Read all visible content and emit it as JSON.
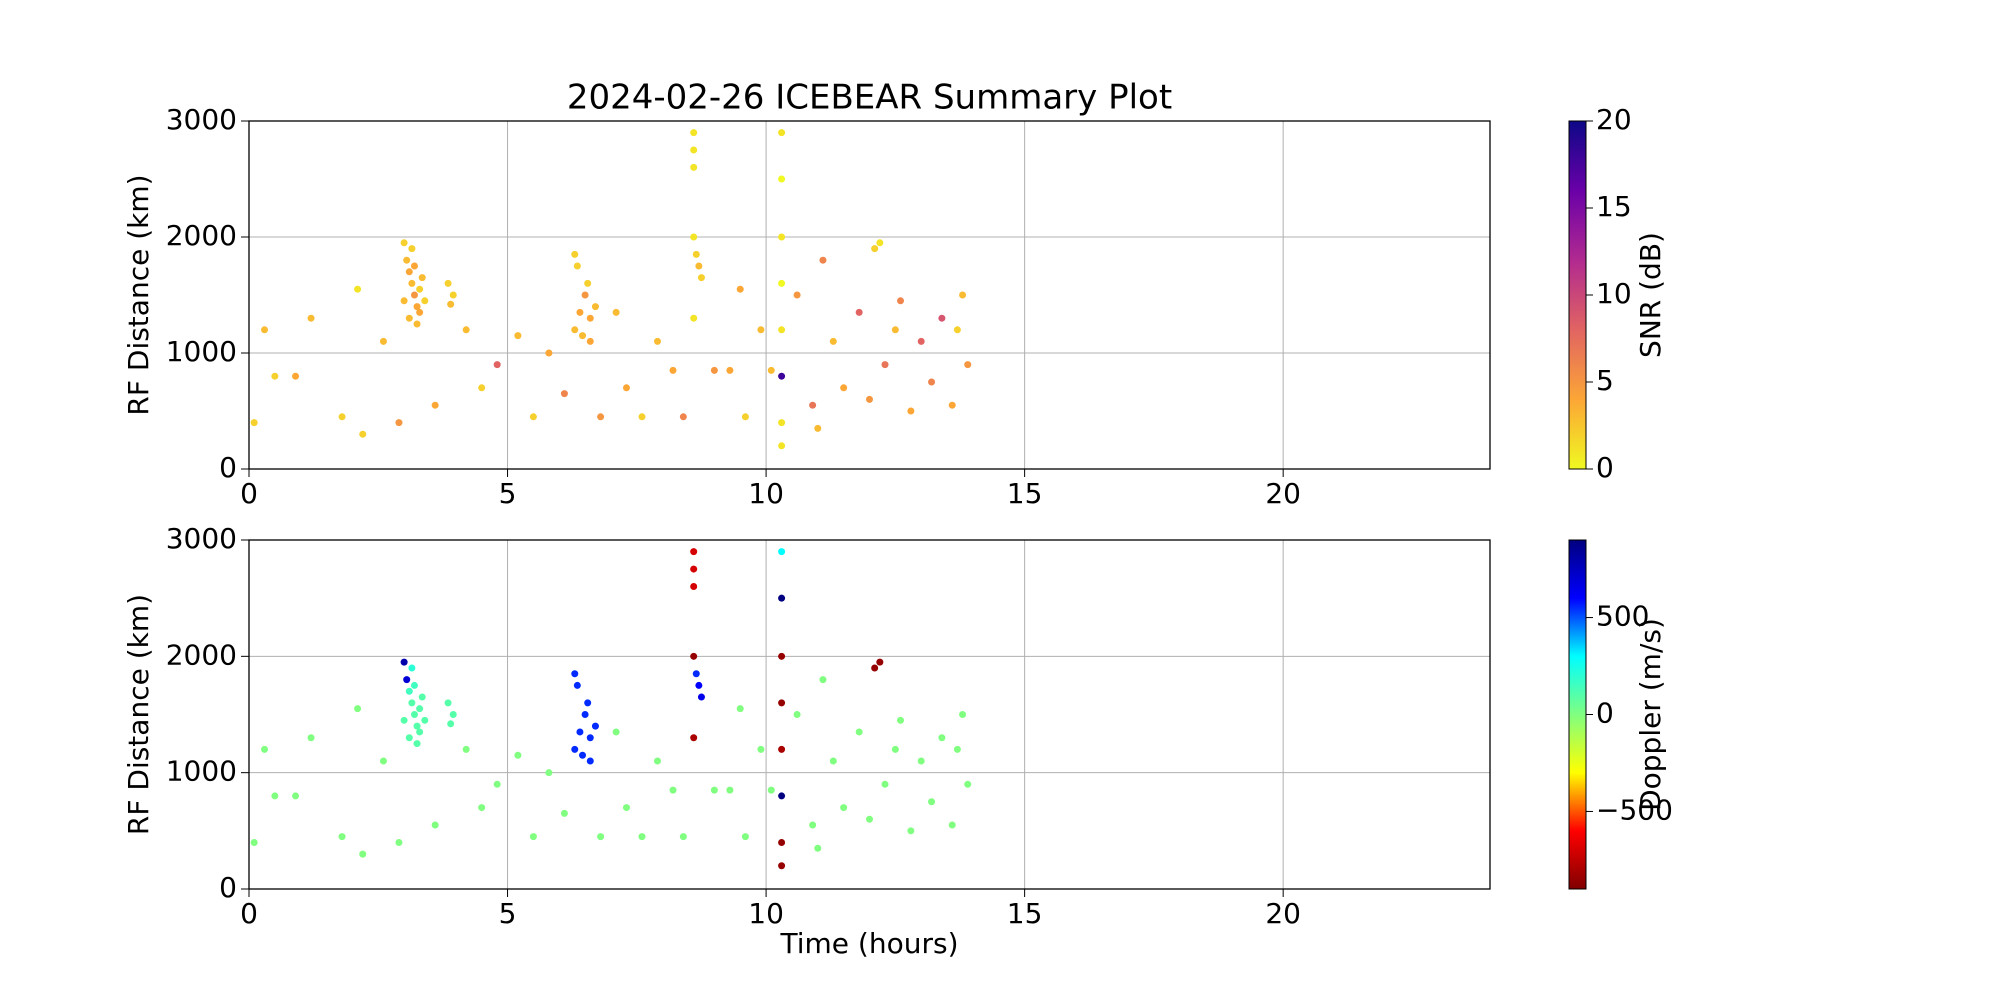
{
  "chart_data": [
    {
      "type": "scatter",
      "title": "2024-02-26 ICEBEAR Summary Plot",
      "ylabel": "RF Distance (km)",
      "xlim": [
        0,
        24
      ],
      "ylim": [
        0,
        3000
      ],
      "xticks": [
        0,
        5,
        10,
        15,
        20
      ],
      "yticks": [
        0,
        1000,
        2000,
        3000
      ],
      "grid": true,
      "colorbar": {
        "label": "SNR (dB)",
        "lim": [
          0,
          20
        ],
        "ticks": [
          0,
          5,
          10,
          15,
          20
        ],
        "colormap": [
          "#f0f921",
          "#fca636",
          "#e16462",
          "#b12a90",
          "#6a00a8",
          "#0d0887"
        ]
      },
      "x": [
        3.0,
        3.05,
        3.1,
        3.15,
        3.2,
        3.25,
        3.1,
        3.3,
        3.35,
        3.2,
        3.0,
        3.3,
        3.15,
        3.25,
        3.4,
        3.85,
        3.95,
        3.9,
        6.3,
        6.4,
        6.5,
        6.6,
        6.45,
        6.55,
        6.35,
        6.7,
        6.6,
        6.3,
        8.6,
        8.6,
        8.6,
        8.6,
        8.65,
        8.7,
        8.75,
        8.6,
        10.3,
        10.3,
        10.3,
        10.3,
        10.3,
        10.3,
        10.3,
        10.3,
        12.1,
        12.2,
        0.1,
        0.3,
        0.5,
        0.9,
        1.2,
        1.8,
        2.1,
        2.2,
        2.6,
        2.9,
        3.6,
        4.2,
        4.5,
        4.8,
        5.2,
        5.5,
        5.8,
        6.1,
        6.8,
        7.1,
        7.3,
        7.6,
        7.9,
        8.2,
        8.4,
        9.0,
        9.3,
        9.6,
        9.9,
        10.1,
        10.6,
        10.9,
        11.1,
        11.3,
        11.5,
        11.8,
        12.0,
        12.3,
        12.5,
        12.8,
        13.0,
        13.2,
        13.4,
        13.6,
        13.8,
        13.9,
        13.7,
        11.0,
        12.6,
        9.5
      ],
      "values": [
        1950,
        1800,
        1700,
        1600,
        1500,
        1400,
        1300,
        1550,
        1650,
        1750,
        1450,
        1350,
        1900,
        1250,
        1450,
        1600,
        1500,
        1420,
        1200,
        1350,
        1500,
        1300,
        1150,
        1600,
        1750,
        1400,
        1100,
        1850,
        2900,
        2750,
        2600,
        2000,
        1850,
        1750,
        1650,
        1300,
        2900,
        2500,
        2000,
        1600,
        1200,
        800,
        400,
        200,
        1900,
        1950,
        400,
        1200,
        800,
        800,
        1300,
        450,
        1550,
        300,
        1100,
        400,
        550,
        1200,
        700,
        900,
        1150,
        450,
        1000,
        650,
        450,
        1350,
        700,
        450,
        1100,
        850,
        450,
        850,
        850,
        450,
        1200,
        850,
        1500,
        550,
        1800,
        1100,
        700,
        1350,
        600,
        900,
        1200,
        500,
        1100,
        750,
        1300,
        550,
        1500,
        900,
        1200,
        350,
        1450,
        1550
      ],
      "color_values": [
        2,
        3,
        4,
        3,
        5,
        4,
        3,
        2,
        3,
        4,
        3,
        4,
        2,
        3,
        2,
        2,
        2,
        3,
        3,
        4,
        5,
        4,
        3,
        2,
        2,
        3,
        4,
        2,
        1,
        1,
        1,
        1,
        2,
        3,
        2,
        1,
        1,
        0,
        1,
        0,
        1,
        18,
        1,
        1,
        2,
        1,
        2,
        3,
        2,
        4,
        3,
        2,
        1,
        2,
        3,
        5,
        4,
        3,
        2,
        8,
        3,
        2,
        4,
        6,
        5,
        3,
        4,
        2,
        3,
        4,
        6,
        5,
        4,
        2,
        3,
        3,
        5,
        7,
        6,
        3,
        4,
        8,
        5,
        7,
        3,
        4,
        8,
        6,
        9,
        4,
        3,
        5,
        2,
        3,
        6,
        4
      ]
    },
    {
      "type": "scatter",
      "ylabel": "RF Distance (km)",
      "xlabel": "Time (hours)",
      "xlim": [
        0,
        24
      ],
      "ylim": [
        0,
        3000
      ],
      "xticks": [
        0,
        5,
        10,
        15,
        20
      ],
      "yticks": [
        0,
        1000,
        2000,
        3000
      ],
      "grid": true,
      "colorbar": {
        "label": "Doppler (m/s)",
        "lim": [
          -900,
          900
        ],
        "ticks": [
          {
            "value": -500,
            "label": "−500"
          },
          0,
          500
        ],
        "colormap": [
          "#800000",
          "#ff0000",
          "#ffff00",
          "#80ff80",
          "#00ffff",
          "#0000ff",
          "#000080"
        ]
      },
      "x": [
        3.0,
        3.05,
        3.1,
        3.15,
        3.2,
        3.25,
        3.1,
        3.3,
        3.35,
        3.2,
        3.0,
        3.3,
        3.15,
        3.25,
        3.4,
        3.85,
        3.95,
        3.9,
        6.3,
        6.4,
        6.5,
        6.6,
        6.45,
        6.55,
        6.35,
        6.7,
        6.6,
        6.3,
        8.6,
        8.6,
        8.6,
        8.6,
        8.65,
        8.7,
        8.75,
        8.6,
        10.3,
        10.3,
        10.3,
        10.3,
        10.3,
        10.3,
        10.3,
        10.3,
        12.1,
        12.2,
        0.1,
        0.3,
        0.5,
        0.9,
        1.2,
        1.8,
        2.1,
        2.2,
        2.6,
        2.9,
        3.6,
        4.2,
        4.5,
        4.8,
        5.2,
        5.5,
        5.8,
        6.1,
        6.8,
        7.1,
        7.3,
        7.6,
        7.9,
        8.2,
        8.4,
        9.0,
        9.3,
        9.6,
        9.9,
        10.1,
        10.6,
        10.9,
        11.1,
        11.3,
        11.5,
        11.8,
        12.0,
        12.3,
        12.5,
        12.8,
        13.0,
        13.2,
        13.4,
        13.6,
        13.8,
        13.9,
        13.7,
        11.0,
        12.6,
        9.5
      ],
      "values": [
        1950,
        1800,
        1700,
        1600,
        1500,
        1400,
        1300,
        1550,
        1650,
        1750,
        1450,
        1350,
        1900,
        1250,
        1450,
        1600,
        1500,
        1420,
        1200,
        1350,
        1500,
        1300,
        1150,
        1600,
        1750,
        1400,
        1100,
        1850,
        2900,
        2750,
        2600,
        2000,
        1850,
        1750,
        1650,
        1300,
        2900,
        2500,
        2000,
        1600,
        1200,
        800,
        400,
        200,
        1900,
        1950,
        400,
        1200,
        800,
        800,
        1300,
        450,
        1550,
        300,
        1100,
        400,
        550,
        1200,
        700,
        900,
        1150,
        450,
        1000,
        650,
        450,
        1350,
        700,
        450,
        1100,
        850,
        450,
        850,
        850,
        450,
        1200,
        850,
        1500,
        550,
        1800,
        1100,
        700,
        1350,
        600,
        900,
        1200,
        500,
        1100,
        750,
        1300,
        550,
        1500,
        900,
        1200,
        350,
        1450,
        1550
      ],
      "color_values": [
        800,
        700,
        150,
        100,
        100,
        100,
        100,
        100,
        100,
        150,
        100,
        100,
        200,
        100,
        100,
        100,
        100,
        100,
        550,
        550,
        550,
        550,
        550,
        550,
        550,
        550,
        550,
        550,
        -700,
        -700,
        -700,
        -850,
        550,
        600,
        650,
        -800,
        300,
        900,
        -850,
        -850,
        -800,
        900,
        -850,
        -850,
        -850,
        -850,
        0,
        0,
        0,
        0,
        0,
        0,
        0,
        0,
        0,
        0,
        0,
        0,
        0,
        0,
        0,
        0,
        0,
        0,
        0,
        0,
        0,
        0,
        0,
        0,
        0,
        0,
        0,
        0,
        0,
        0,
        0,
        0,
        0,
        0,
        0,
        0,
        0,
        0,
        0,
        0,
        0,
        0,
        0,
        0,
        0,
        0,
        0,
        0,
        0,
        0
      ]
    }
  ]
}
